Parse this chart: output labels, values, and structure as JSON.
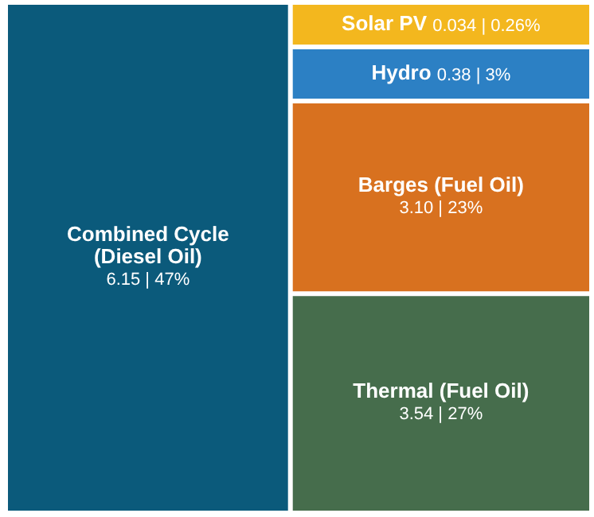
{
  "chart_data": {
    "type": "other",
    "categories": [
      "Combined Cycle (Diesel Oil)",
      "Thermal (Fuel Oil)",
      "Barges (Fuel Oil)",
      "Hydro",
      "Solar PV"
    ],
    "values": [
      6.15,
      3.54,
      3.1,
      0.38,
      0.034
    ],
    "value_labels": [
      "6.15 | 47%",
      "3.54 | 27%",
      "3.10 | 23%",
      "0.38 | 3%",
      "0.034 | 0.26%"
    ],
    "colors": [
      "#0b5a7b",
      "#466d4c",
      "#d8711f",
      "#2c80c4",
      "#f3b71e"
    ]
  }
}
